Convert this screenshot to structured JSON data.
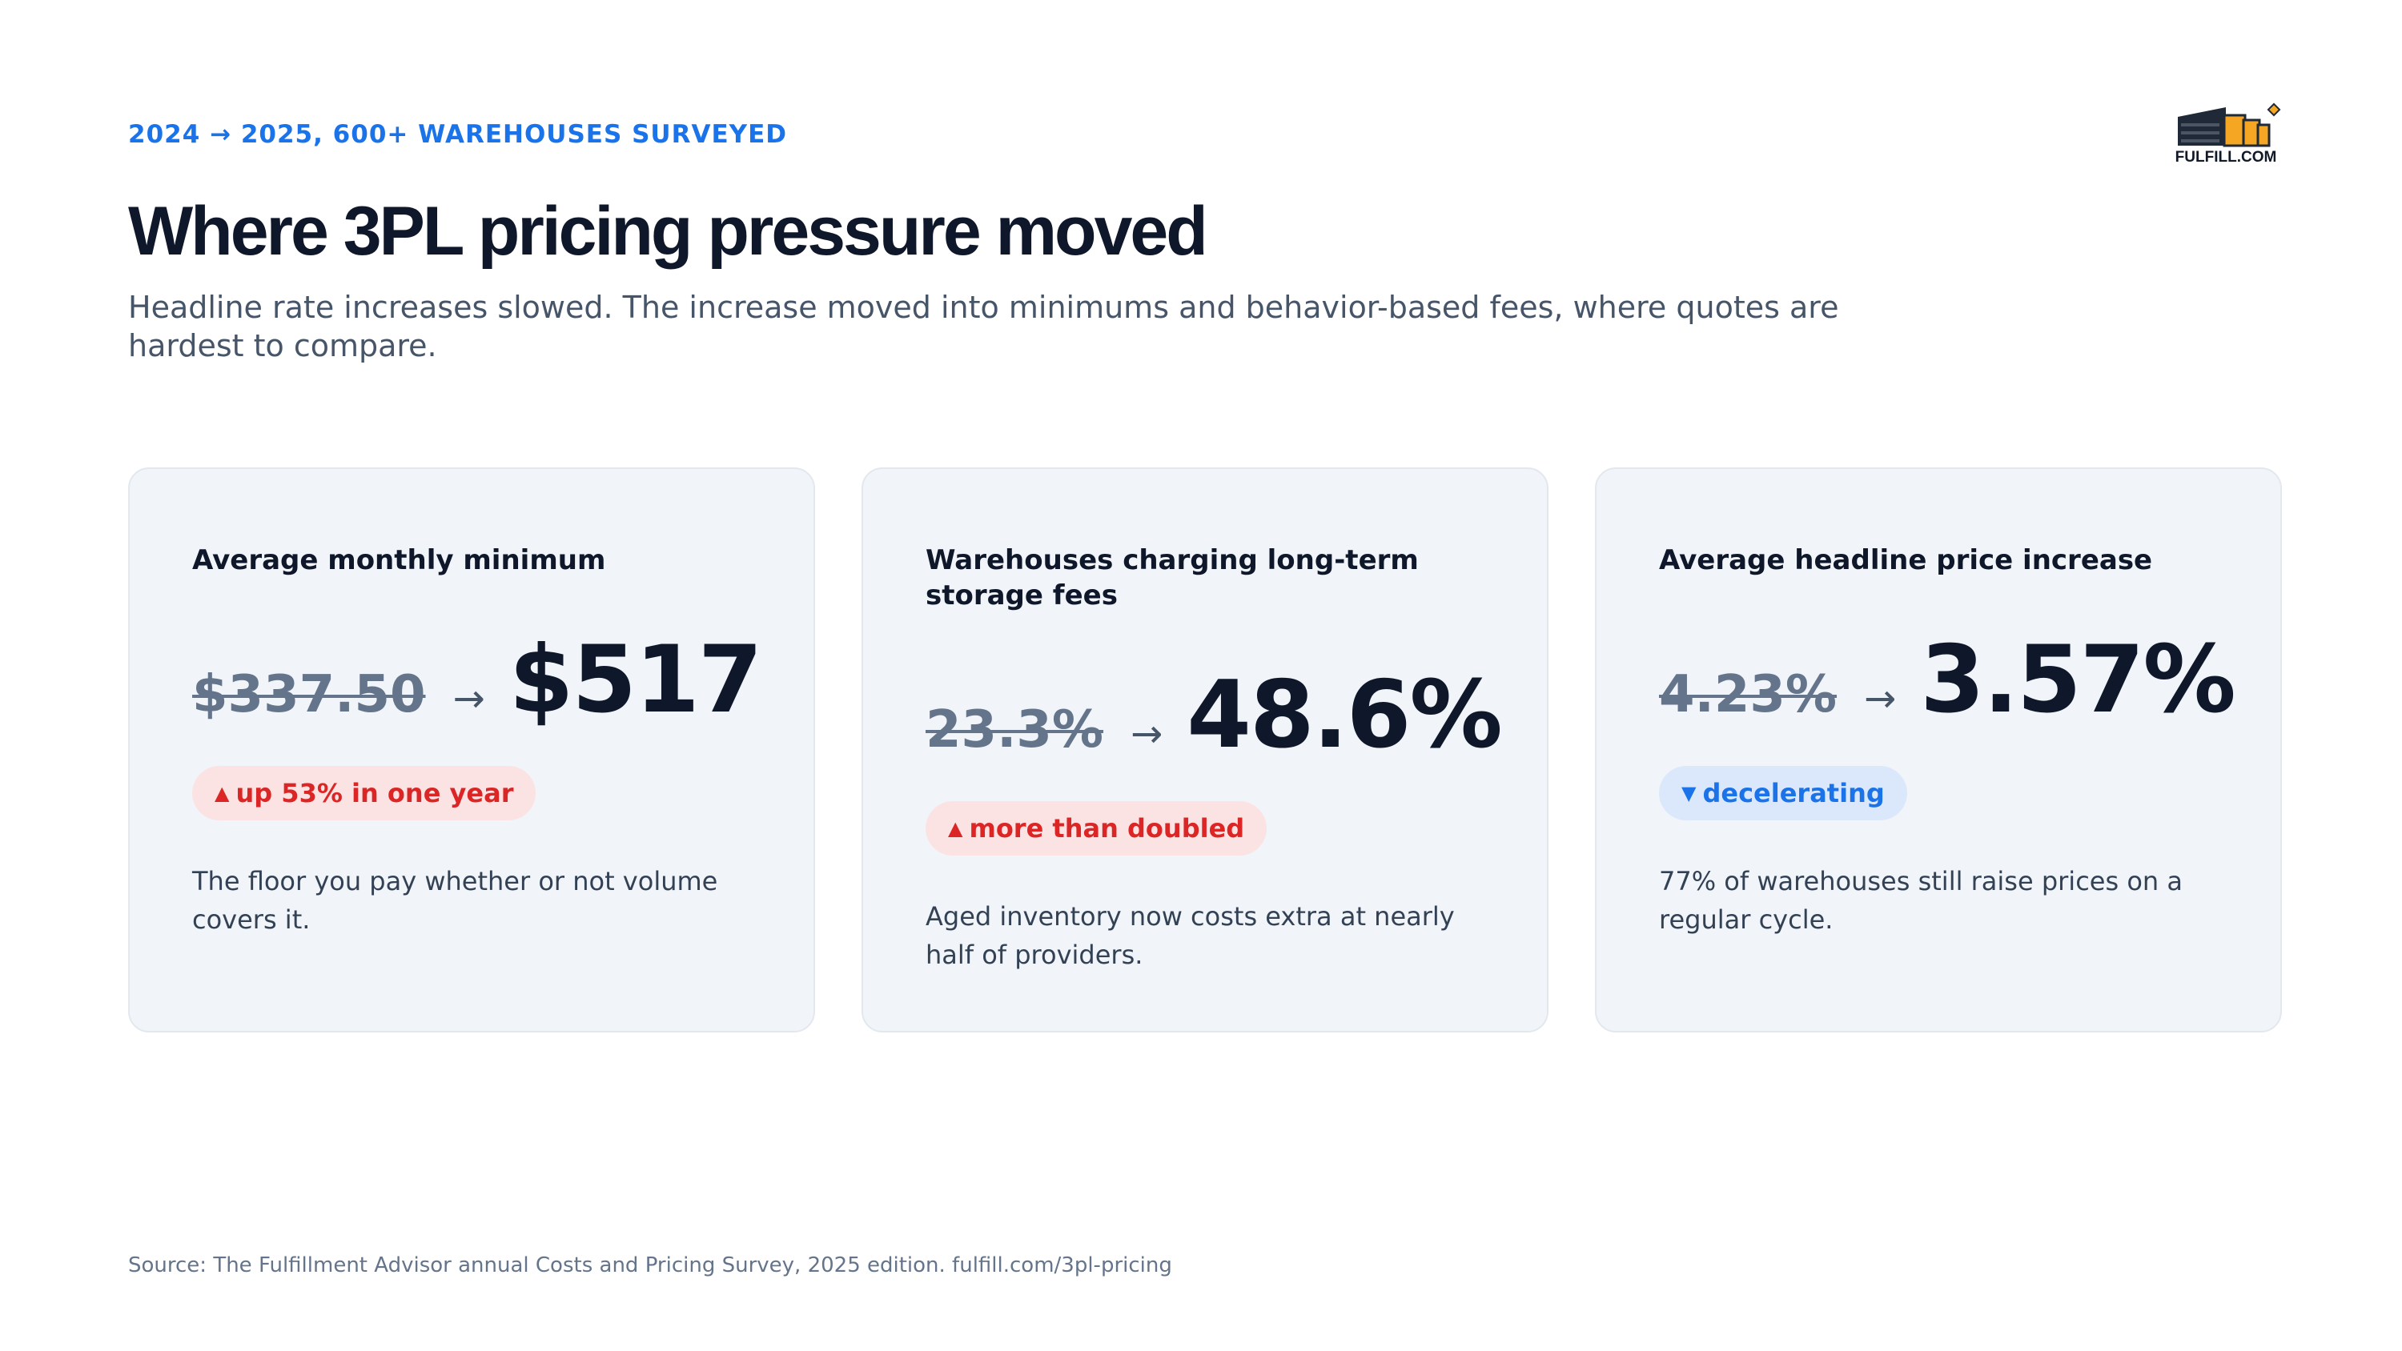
{
  "header": {
    "eyebrow": "2024 → 2025, 600+ WAREHOUSES SURVEYED",
    "title": "Where 3PL pricing pressure moved",
    "subtitle": "Headline rate increases slowed. The increase moved into minimums and behavior-based fees, where quotes are hardest to compare.",
    "logo_text": "FULFILL.COM"
  },
  "cards": [
    {
      "title": "Average monthly minimum",
      "old_value": "$337.50",
      "arrow": "→",
      "new_value": "$517",
      "badge_icon": "▲",
      "badge_text": "up 53% in one year",
      "badge_direction": "up",
      "description": "The floor you pay whether or not volume covers it."
    },
    {
      "title": "Warehouses charging long-term storage fees",
      "old_value": "23.3%",
      "arrow": "→",
      "new_value": "48.6%",
      "badge_icon": "▲",
      "badge_text": "more than doubled",
      "badge_direction": "up",
      "description": "Aged inventory now costs extra at nearly half of providers."
    },
    {
      "title": "Average headline price increase",
      "old_value": "4.23%",
      "arrow": "→",
      "new_value": "3.57%",
      "badge_icon": "▼",
      "badge_text": "decelerating",
      "badge_direction": "down",
      "description": "77% of warehouses still raise prices on a regular cycle."
    }
  ],
  "footer": {
    "source": "Source: The Fulfillment Advisor annual Costs and Pricing Survey, 2025 edition. fulfill.com/3pl-pricing"
  },
  "colors": {
    "accent_blue": "#1a73e8",
    "increase_red": "#dc2626",
    "card_bg": "#f1f4f8",
    "title_ink": "#0f172a",
    "logo_orange": "#f5a623"
  }
}
